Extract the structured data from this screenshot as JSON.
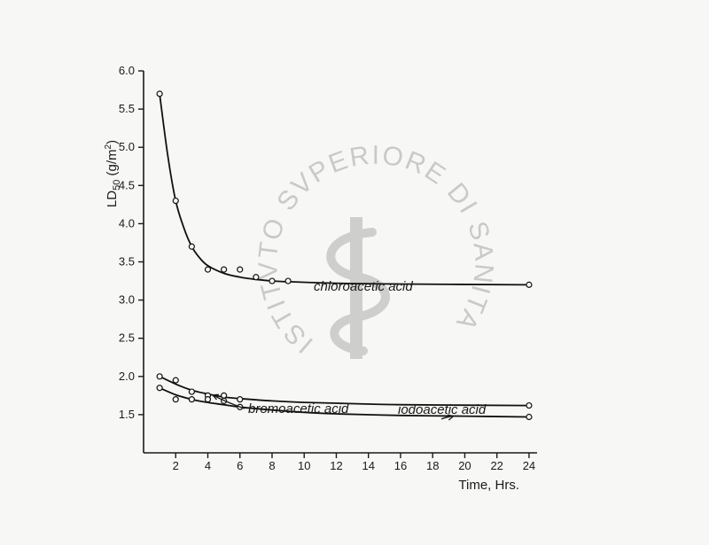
{
  "chart_data": {
    "type": "line",
    "xlabel": "Time, Hrs.",
    "ylabel_main": "LD",
    "ylabel_sub": "50",
    "ylabel_unit_open": " (g/m",
    "ylabel_unit_sup": "2",
    "ylabel_unit_close": ")",
    "xlim": [
      0,
      24.5
    ],
    "ylim": [
      1.0,
      6.0
    ],
    "x_ticks": [
      2,
      4,
      6,
      8,
      10,
      12,
      14,
      16,
      18,
      20,
      22,
      24
    ],
    "y_ticks": [
      1.5,
      2.0,
      2.5,
      3.0,
      3.5,
      4.0,
      4.5,
      5.0,
      5.5,
      6.0
    ],
    "x_tick_labels": [
      "2",
      "4",
      "6",
      "8",
      "10",
      "12",
      "14",
      "16",
      "18",
      "20",
      "22",
      "24"
    ],
    "y_tick_labels": [
      "1.5",
      "2.0",
      "2.5",
      "3.0",
      "3.5",
      "4.0",
      "4.5",
      "5.0",
      "5.5",
      "6.0"
    ],
    "grid": false,
    "series": [
      {
        "name": "chloroacetic acid",
        "points": [
          [
            1,
            5.7
          ],
          [
            2,
            4.3
          ],
          [
            3,
            3.7
          ],
          [
            4,
            3.4
          ],
          [
            5,
            3.4
          ],
          [
            6,
            3.4
          ],
          [
            7,
            3.3
          ],
          [
            8,
            3.25
          ],
          [
            9,
            3.25
          ],
          [
            24,
            3.2
          ]
        ],
        "curve": [
          [
            1,
            5.7
          ],
          [
            1.5,
            4.9
          ],
          [
            2,
            4.3
          ],
          [
            2.5,
            3.95
          ],
          [
            3,
            3.7
          ],
          [
            3.5,
            3.55
          ],
          [
            4,
            3.45
          ],
          [
            5,
            3.35
          ],
          [
            6,
            3.3
          ],
          [
            7,
            3.27
          ],
          [
            8,
            3.25
          ],
          [
            9,
            3.24
          ],
          [
            12,
            3.22
          ],
          [
            16,
            3.21
          ],
          [
            24,
            3.2
          ]
        ]
      },
      {
        "name": "bromoacetic acid",
        "points": [
          [
            1,
            2.0
          ],
          [
            2,
            1.95
          ],
          [
            3,
            1.8
          ],
          [
            4,
            1.75
          ],
          [
            5,
            1.75
          ],
          [
            6,
            1.7
          ],
          [
            24,
            1.62
          ]
        ],
        "curve": [
          [
            1,
            2.0
          ],
          [
            2,
            1.9
          ],
          [
            3,
            1.82
          ],
          [
            4,
            1.77
          ],
          [
            5,
            1.73
          ],
          [
            6,
            1.71
          ],
          [
            8,
            1.68
          ],
          [
            10,
            1.66
          ],
          [
            12,
            1.65
          ],
          [
            16,
            1.63
          ],
          [
            24,
            1.62
          ]
        ]
      },
      {
        "name": "iodoacetic acid",
        "points": [
          [
            1,
            1.85
          ],
          [
            2,
            1.7
          ],
          [
            3,
            1.7
          ],
          [
            4,
            1.7
          ],
          [
            5,
            1.68
          ],
          [
            6,
            1.6
          ],
          [
            24,
            1.47
          ]
        ],
        "curve": [
          [
            1,
            1.85
          ],
          [
            2,
            1.76
          ],
          [
            3,
            1.7
          ],
          [
            4,
            1.66
          ],
          [
            5,
            1.63
          ],
          [
            6,
            1.6
          ],
          [
            8,
            1.56
          ],
          [
            10,
            1.53
          ],
          [
            12,
            1.51
          ],
          [
            16,
            1.49
          ],
          [
            20,
            1.48
          ],
          [
            24,
            1.47
          ]
        ]
      }
    ],
    "annotations": [
      {
        "text": "chloroacetic acid",
        "series": "chloroacetic acid"
      },
      {
        "text": "bromoacetic acid",
        "series": "bromoacetic acid",
        "arrow_to_x": 4.3
      },
      {
        "text": "iodoacetic acid",
        "series": "iodoacetic acid",
        "arrow_to_x": 19.3
      }
    ]
  },
  "watermark": {
    "arc_text": "ISTITVTO SVPERIORE DI SANITA"
  }
}
